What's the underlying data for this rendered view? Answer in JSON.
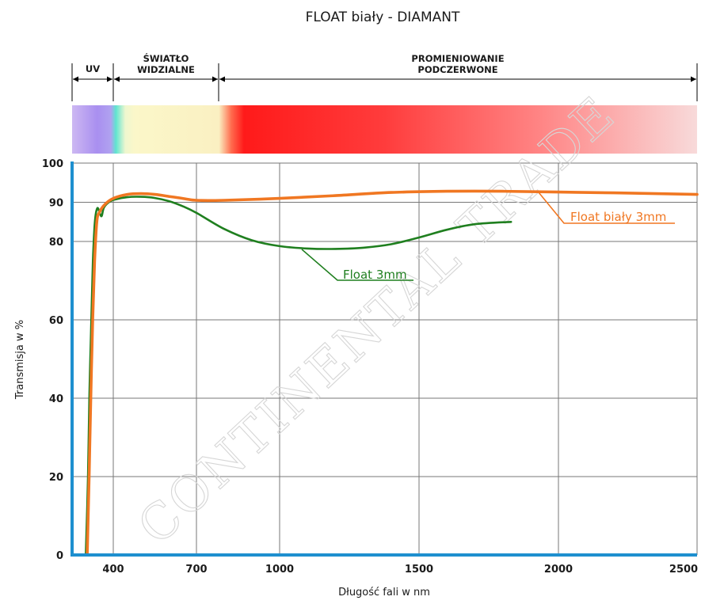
{
  "chart_data": {
    "type": "line",
    "title": "FLOAT biały - DIAMANT",
    "xlabel": "Długość fali w nm",
    "ylabel": "Transmisja w %",
    "x_ticks": [
      400,
      700,
      1000,
      1500,
      2000,
      2500
    ],
    "y_ticks": [
      0,
      20,
      40,
      60,
      80,
      90,
      100
    ],
    "ylim": [
      0,
      100
    ],
    "grid": true,
    "spectrum_bands": [
      {
        "label_lines": [
          "UV"
        ],
        "from": 250,
        "to": 400
      },
      {
        "label_lines": [
          "ŚWIATŁO",
          "WIDZIALNE"
        ],
        "from": 400,
        "to": 780
      },
      {
        "label_lines": [
          "PROMIENIOWANIE",
          "PODCZERWONE"
        ],
        "from": 780,
        "to": 2500
      }
    ],
    "series": [
      {
        "name": "Float biały 3mm",
        "color": "#f07722",
        "points": [
          [
            305,
            0
          ],
          [
            312,
            20
          ],
          [
            318,
            40
          ],
          [
            325,
            60
          ],
          [
            332,
            75
          ],
          [
            340,
            85
          ],
          [
            350,
            87.5
          ],
          [
            370,
            89.5
          ],
          [
            400,
            91
          ],
          [
            450,
            92
          ],
          [
            500,
            92.2
          ],
          [
            550,
            92
          ],
          [
            600,
            91.5
          ],
          [
            650,
            91
          ],
          [
            700,
            90.5
          ],
          [
            800,
            90.5
          ],
          [
            1000,
            91
          ],
          [
            1200,
            91.7
          ],
          [
            1400,
            92.5
          ],
          [
            1600,
            92.8
          ],
          [
            1800,
            92.8
          ],
          [
            2000,
            92.6
          ],
          [
            2200,
            92.4
          ],
          [
            2500,
            92
          ]
        ]
      },
      {
        "name": "Float 3mm",
        "color": "#1f7f1f",
        "points": [
          [
            300,
            0
          ],
          [
            308,
            20
          ],
          [
            313,
            40
          ],
          [
            320,
            60
          ],
          [
            326,
            75
          ],
          [
            333,
            85
          ],
          [
            342,
            88.5
          ],
          [
            352,
            87
          ],
          [
            358,
            86.5
          ],
          [
            365,
            88.5
          ],
          [
            380,
            89.8
          ],
          [
            400,
            90.6
          ],
          [
            450,
            91.3
          ],
          [
            500,
            91.4
          ],
          [
            550,
            91.1
          ],
          [
            600,
            90.3
          ],
          [
            650,
            89
          ],
          [
            700,
            87.3
          ],
          [
            800,
            83.2
          ],
          [
            900,
            80.3
          ],
          [
            1000,
            78.8
          ],
          [
            1100,
            78.2
          ],
          [
            1200,
            78.1
          ],
          [
            1300,
            78.4
          ],
          [
            1400,
            79.3
          ],
          [
            1500,
            81
          ],
          [
            1600,
            83
          ],
          [
            1700,
            84.4
          ],
          [
            1830,
            85
          ]
        ]
      }
    ]
  },
  "watermark": "CONTINENTAL TRADE",
  "colors": {
    "axis": "#1e8fcf",
    "grid": "#777777"
  }
}
